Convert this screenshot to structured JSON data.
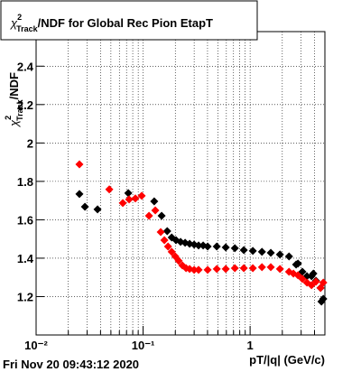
{
  "chart_data": {
    "type": "scatter",
    "title": {
      "symbol": "χ",
      "sup": "2",
      "sub": "Track",
      "text": "/NDF for Global Rec Pion EtapT"
    },
    "y_label": {
      "symbol": "χ",
      "sup": "2",
      "sub": "Track",
      "text": "/NDF"
    },
    "x_label": "pT/|q| (GeV/c)",
    "timestamp": "Fri Nov 20 09:43:12 2020",
    "xlim": [
      0.01,
      5
    ],
    "ylim": [
      1.0,
      2.58
    ],
    "log_x": true,
    "grid": true,
    "xticks": [
      {
        "value": 0.01,
        "label": "10⁻²"
      },
      {
        "value": 0.1,
        "label": "10⁻¹"
      },
      1
    ],
    "xminorticks": [
      0.02,
      0.03,
      0.04,
      0.05,
      0.06,
      0.07,
      0.08,
      0.09,
      0.2,
      0.3,
      0.4,
      0.5,
      0.6,
      0.7,
      0.8,
      0.9,
      2,
      3,
      4
    ],
    "yticks": [
      1.2,
      1.4,
      1.6,
      1.8,
      2,
      2.2,
      2.4
    ],
    "series": [
      {
        "color": "#000000",
        "x": [
          0.0254,
          0.0286,
          0.0375,
          0.0727,
          0.127,
          0.149,
          0.168,
          0.185,
          0.203,
          0.224,
          0.247,
          0.272,
          0.3,
          0.33,
          0.364,
          0.401,
          0.488,
          0.592,
          0.72,
          0.873,
          1.06,
          1.29,
          1.56,
          1.9,
          2.31,
          2.69,
          2.8,
          3.08,
          3.4,
          3.75,
          3.9,
          4.13,
          4.55,
          4.64,
          4.83
        ],
        "values": [
          1.734,
          1.668,
          1.654,
          1.739,
          1.696,
          1.621,
          1.541,
          1.508,
          1.494,
          1.485,
          1.48,
          1.475,
          1.471,
          1.466,
          1.466,
          1.461,
          1.461,
          1.456,
          1.452,
          1.442,
          1.438,
          1.433,
          1.428,
          1.419,
          1.409,
          1.367,
          1.372,
          1.329,
          1.306,
          1.306,
          1.32,
          1.282,
          1.245,
          1.174,
          1.188
        ]
      },
      {
        "color": "#ff0000",
        "x": [
          0.0254,
          0.0483,
          0.0646,
          0.074,
          0.0847,
          0.097,
          0.1135,
          0.13,
          0.146,
          0.158,
          0.171,
          0.185,
          0.2,
          0.215,
          0.233,
          0.252,
          0.272,
          0.3,
          0.33,
          0.401,
          0.488,
          0.592,
          0.72,
          0.873,
          1.06,
          1.29,
          1.56,
          1.9,
          2.31,
          2.54,
          2.8,
          3.08,
          3.4,
          3.75,
          4.13,
          4.55,
          4.83
        ],
        "values": [
          1.889,
          1.758,
          1.687,
          1.706,
          1.711,
          1.725,
          1.621,
          1.649,
          1.536,
          1.494,
          1.461,
          1.433,
          1.409,
          1.386,
          1.362,
          1.348,
          1.344,
          1.339,
          1.339,
          1.339,
          1.344,
          1.344,
          1.348,
          1.348,
          1.348,
          1.353,
          1.353,
          1.344,
          1.329,
          1.32,
          1.311,
          1.292,
          1.273,
          1.259,
          1.278,
          1.245,
          1.273
        ]
      }
    ]
  }
}
